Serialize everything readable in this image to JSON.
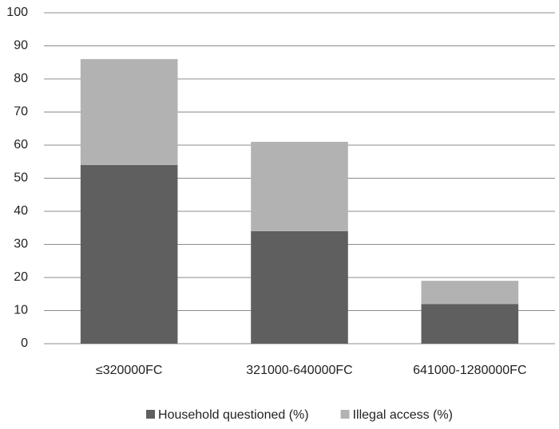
{
  "chart_data": {
    "type": "stacked_bar",
    "categories": [
      "≤320000FC",
      "321000-640000FC",
      "641000-1280000FC"
    ],
    "series": [
      {
        "name": "Household questioned (%)",
        "color": "#5f5f5f",
        "values": [
          54,
          34,
          12
        ]
      },
      {
        "name": "Illegal access (%)",
        "color": "#b2b2b2",
        "values": [
          32,
          27,
          7
        ]
      }
    ],
    "ylim": [
      0,
      100
    ],
    "yticks": [
      0,
      10,
      20,
      30,
      40,
      50,
      60,
      70,
      80,
      90,
      100
    ],
    "grid": true,
    "legend": "bottom"
  }
}
